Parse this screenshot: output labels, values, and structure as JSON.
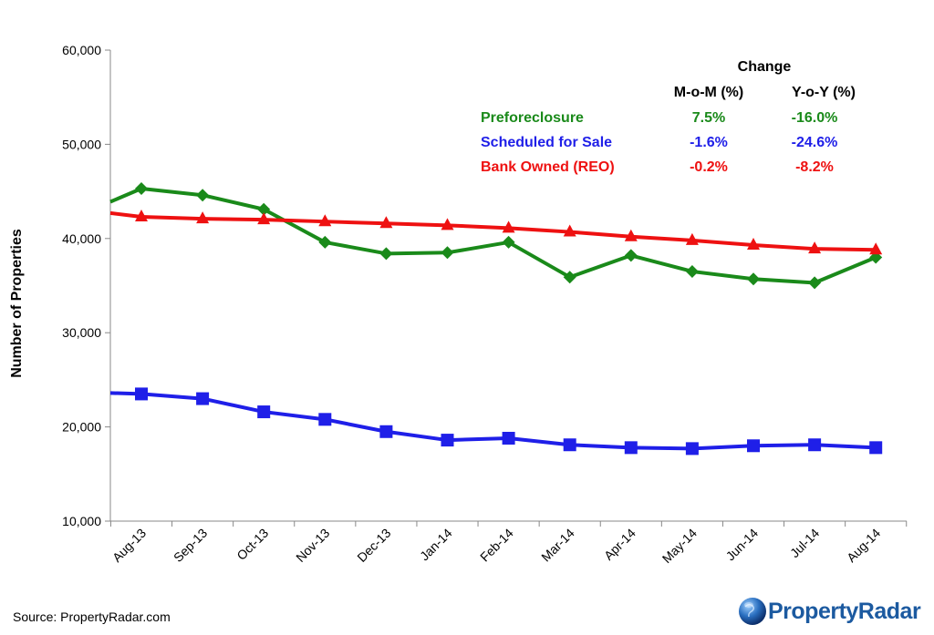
{
  "chart_data": {
    "type": "line",
    "ylabel": "Number of Properties",
    "xlabel": "",
    "ylim": [
      10000,
      60000
    ],
    "y_ticks": [
      10000,
      20000,
      30000,
      40000,
      50000,
      60000
    ],
    "y_tick_labels": [
      "10,000",
      "20,000",
      "30,000",
      "40,000",
      "50,000",
      "60,000"
    ],
    "categories": [
      "Aug-13",
      "Sep-13",
      "Oct-13",
      "Nov-13",
      "Dec-13",
      "Jan-14",
      "Feb-14",
      "Mar-14",
      "Apr-14",
      "May-14",
      "Jun-14",
      "Jul-14",
      "Aug-14"
    ],
    "series": [
      {
        "name": "Preforeclosure",
        "color": "#1a8a1a",
        "marker": "diamond",
        "start_value": 43900,
        "values": [
          45300,
          44600,
          43100,
          39600,
          38400,
          38500,
          39600,
          35900,
          38200,
          36500,
          35700,
          35300,
          38000
        ]
      },
      {
        "name": "Scheduled for Sale",
        "color": "#1f1fe8",
        "marker": "square",
        "start_value": 23600,
        "values": [
          23500,
          23000,
          21600,
          20800,
          19500,
          18600,
          18800,
          18100,
          17800,
          17700,
          18000,
          18100,
          17800
        ]
      },
      {
        "name": "Bank Owned (REO)",
        "color": "#ee1111",
        "marker": "triangle",
        "start_value": 42700,
        "values": [
          42300,
          42100,
          42000,
          41800,
          41600,
          41400,
          41100,
          40700,
          40200,
          39800,
          39300,
          38900,
          38800
        ]
      }
    ],
    "change_table": {
      "title": "Change",
      "columns": [
        "M-o-M (%)",
        "Y-o-Y (%)"
      ],
      "rows": [
        {
          "label": "Preforeclosure",
          "color": "#1a8a1a",
          "mom": "7.5%",
          "yoy": "-16.0%"
        },
        {
          "label": "Scheduled for Sale",
          "color": "#1f1fe8",
          "mom": "-1.6%",
          "yoy": "-24.6%"
        },
        {
          "label": "Bank Owned (REO)",
          "color": "#ee1111",
          "mom": "-0.2%",
          "yoy": "-8.2%"
        }
      ]
    }
  },
  "footer": {
    "source": "Source: PropertyRadar.com",
    "logo_text": "PropertyRadar"
  }
}
